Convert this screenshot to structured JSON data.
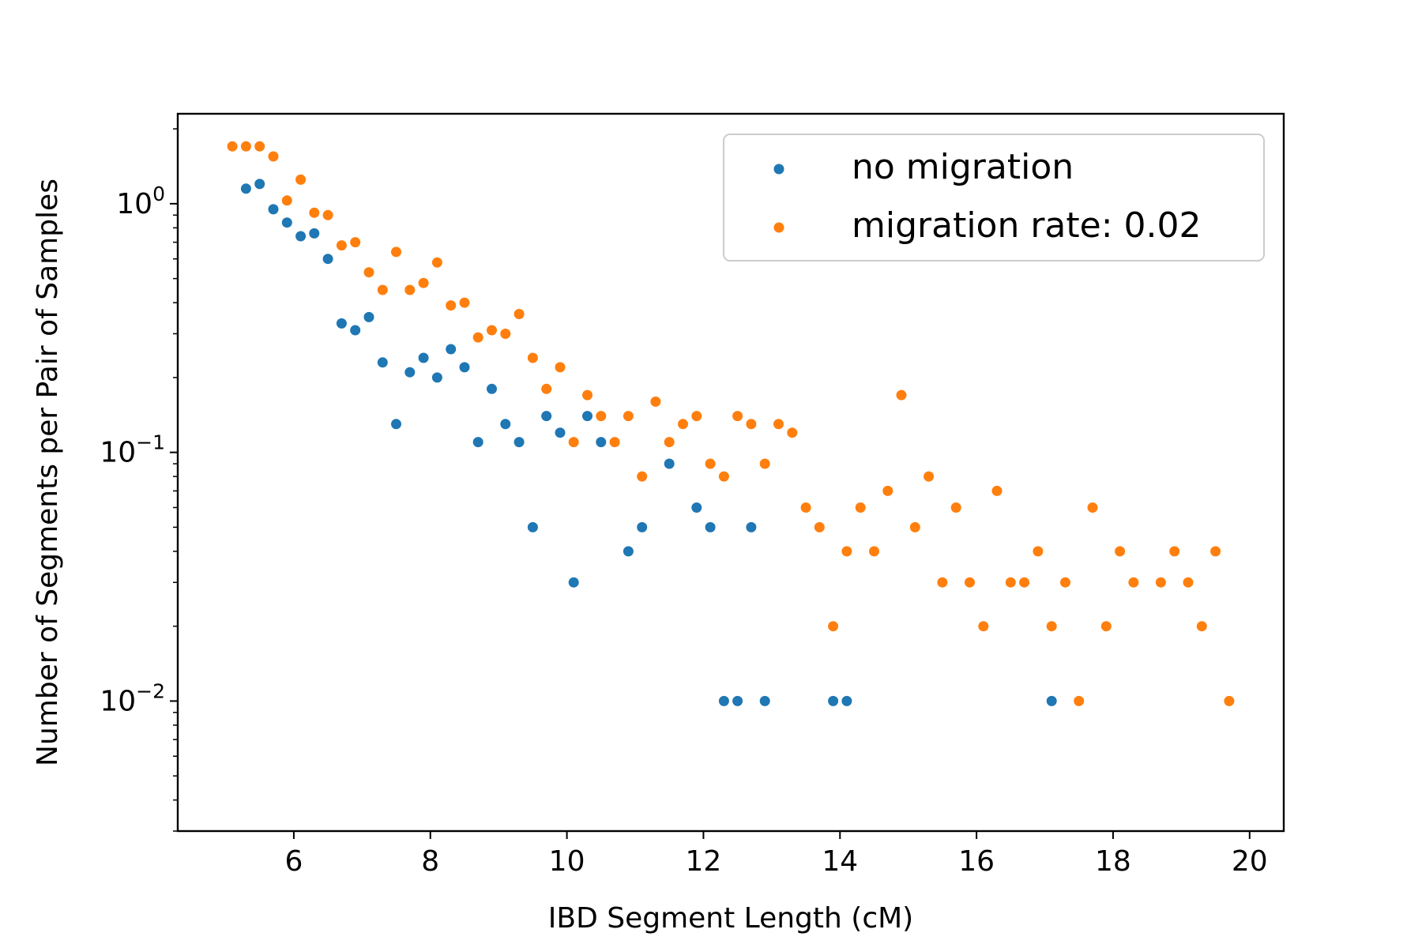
{
  "chart_data": {
    "type": "scatter",
    "title": "",
    "xlabel": "IBD Segment Length (cM)",
    "ylabel": "Number of Segments per Pair of Samples",
    "xlim": [
      4.3,
      20.5
    ],
    "ylim": [
      0.003,
      2.3
    ],
    "yscale": "log",
    "grid": false,
    "legend_position": "top-right",
    "x_ticks": [
      6,
      8,
      10,
      12,
      14,
      16,
      18,
      20
    ],
    "x_tick_labels": [
      "6",
      "8",
      "10",
      "12",
      "14",
      "16",
      "18",
      "20"
    ],
    "y_ticks": [
      0.01,
      0.1,
      1
    ],
    "y_tick_labels": [
      {
        "base": "10",
        "exp": "−2"
      },
      {
        "base": "10",
        "exp": "−1"
      },
      {
        "base": "10",
        "exp": "0"
      }
    ],
    "series": [
      {
        "name": "no migration",
        "color": "#1f77b4",
        "points": [
          [
            5.3,
            1.15
          ],
          [
            5.5,
            1.2
          ],
          [
            5.7,
            0.95
          ],
          [
            5.9,
            0.84
          ],
          [
            6.1,
            0.74
          ],
          [
            6.3,
            0.76
          ],
          [
            6.5,
            0.6
          ],
          [
            6.7,
            0.33
          ],
          [
            6.9,
            0.31
          ],
          [
            7.1,
            0.35
          ],
          [
            7.3,
            0.23
          ],
          [
            7.5,
            0.13
          ],
          [
            7.7,
            0.21
          ],
          [
            7.9,
            0.24
          ],
          [
            8.1,
            0.2
          ],
          [
            8.3,
            0.26
          ],
          [
            8.5,
            0.22
          ],
          [
            8.7,
            0.11
          ],
          [
            8.9,
            0.18
          ],
          [
            9.1,
            0.13
          ],
          [
            9.3,
            0.11
          ],
          [
            9.5,
            0.05
          ],
          [
            9.7,
            0.14
          ],
          [
            9.9,
            0.12
          ],
          [
            10.1,
            0.03
          ],
          [
            10.3,
            0.14
          ],
          [
            10.5,
            0.11
          ],
          [
            10.9,
            0.04
          ],
          [
            11.1,
            0.05
          ],
          [
            11.5,
            0.09
          ],
          [
            11.9,
            0.06
          ],
          [
            12.1,
            0.05
          ],
          [
            12.3,
            0.01
          ],
          [
            12.5,
            0.01
          ],
          [
            12.7,
            0.05
          ],
          [
            12.9,
            0.01
          ],
          [
            13.9,
            0.01
          ],
          [
            14.1,
            0.01
          ],
          [
            17.1,
            0.01
          ]
        ]
      },
      {
        "name": "migration rate: 0.02",
        "color": "#ff7f0e",
        "points": [
          [
            5.1,
            1.7
          ],
          [
            5.3,
            1.7
          ],
          [
            5.5,
            1.7
          ],
          [
            5.7,
            1.55
          ],
          [
            5.9,
            1.03
          ],
          [
            6.1,
            1.25
          ],
          [
            6.3,
            0.92
          ],
          [
            6.5,
            0.9
          ],
          [
            6.7,
            0.68
          ],
          [
            6.9,
            0.7
          ],
          [
            7.1,
            0.53
          ],
          [
            7.3,
            0.45
          ],
          [
            7.5,
            0.64
          ],
          [
            7.7,
            0.45
          ],
          [
            7.9,
            0.48
          ],
          [
            8.1,
            0.58
          ],
          [
            8.3,
            0.39
          ],
          [
            8.5,
            0.4
          ],
          [
            8.7,
            0.29
          ],
          [
            8.9,
            0.31
          ],
          [
            9.1,
            0.3
          ],
          [
            9.3,
            0.36
          ],
          [
            9.5,
            0.24
          ],
          [
            9.7,
            0.18
          ],
          [
            9.9,
            0.22
          ],
          [
            10.1,
            0.11
          ],
          [
            10.3,
            0.17
          ],
          [
            10.5,
            0.14
          ],
          [
            10.7,
            0.11
          ],
          [
            10.9,
            0.14
          ],
          [
            11.1,
            0.08
          ],
          [
            11.3,
            0.16
          ],
          [
            11.5,
            0.11
          ],
          [
            11.7,
            0.13
          ],
          [
            11.9,
            0.14
          ],
          [
            12.1,
            0.09
          ],
          [
            12.3,
            0.08
          ],
          [
            12.5,
            0.14
          ],
          [
            12.7,
            0.13
          ],
          [
            12.9,
            0.09
          ],
          [
            13.1,
            0.13
          ],
          [
            13.3,
            0.12
          ],
          [
            13.5,
            0.06
          ],
          [
            13.7,
            0.05
          ],
          [
            13.9,
            0.02
          ],
          [
            14.1,
            0.04
          ],
          [
            14.3,
            0.06
          ],
          [
            14.5,
            0.04
          ],
          [
            14.7,
            0.07
          ],
          [
            14.9,
            0.17
          ],
          [
            15.1,
            0.05
          ],
          [
            15.3,
            0.08
          ],
          [
            15.5,
            0.03
          ],
          [
            15.7,
            0.06
          ],
          [
            15.9,
            0.03
          ],
          [
            16.1,
            0.02
          ],
          [
            16.3,
            0.07
          ],
          [
            16.5,
            0.03
          ],
          [
            16.7,
            0.03
          ],
          [
            16.9,
            0.04
          ],
          [
            17.1,
            0.02
          ],
          [
            17.3,
            0.03
          ],
          [
            17.5,
            0.01
          ],
          [
            17.7,
            0.06
          ],
          [
            17.9,
            0.02
          ],
          [
            18.1,
            0.04
          ],
          [
            18.3,
            0.03
          ],
          [
            18.7,
            0.03
          ],
          [
            18.9,
            0.04
          ],
          [
            19.1,
            0.03
          ],
          [
            19.3,
            0.02
          ],
          [
            19.5,
            0.04
          ],
          [
            19.7,
            0.01
          ]
        ]
      }
    ]
  }
}
